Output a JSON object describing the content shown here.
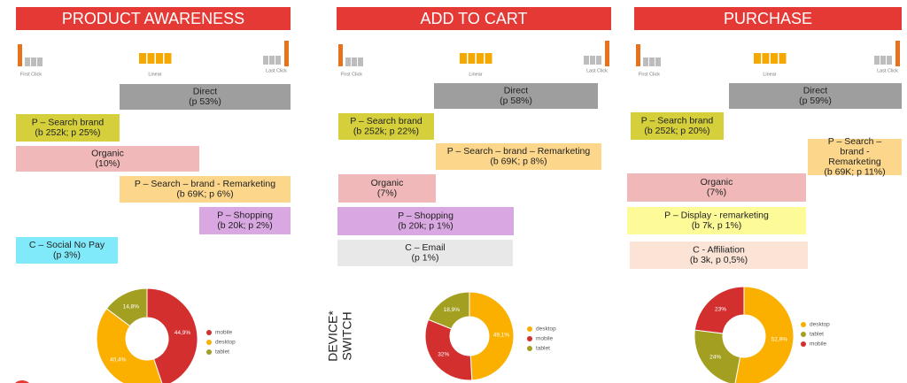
{
  "panels": [
    {
      "title": "PRODUCT AWARENESS",
      "models": [
        "First Click",
        "Linear",
        "Last Click"
      ],
      "channels": [
        {
          "lines": [
            "Direct",
            "(p 53%)"
          ],
          "color": "#9e9e9e"
        },
        {
          "lines": [
            "P – Search brand",
            "(b 252k; p 25%)"
          ],
          "color": "#d4cf3a"
        },
        {
          "lines": [
            "Organic",
            "(10%)"
          ],
          "color": "#f0b8b8"
        },
        {
          "lines": [
            "P – Search – brand - Remarketing",
            "(b 69K; p 6%)"
          ],
          "color": "#fcd68a"
        },
        {
          "lines": [
            "P – Shopping",
            "(b 20k; p 2%)"
          ],
          "color": "#d9a8e2"
        },
        {
          "lines": [
            "C – Social No Pay",
            "(p 3%)"
          ],
          "color": "#80e9fa"
        }
      ]
    },
    {
      "title": "ADD TO CART",
      "models": [
        "First Click",
        "Linear",
        "Last Click"
      ],
      "channels": [
        {
          "lines": [
            "Direct",
            "(p 58%)"
          ],
          "color": "#9e9e9e"
        },
        {
          "lines": [
            "P – Search brand",
            "(b 252k; p 22%)"
          ],
          "color": "#d4cf3a"
        },
        {
          "lines": [
            "P – Search – brand – Remarketing",
            "(b 69K; p 8%)"
          ],
          "color": "#fcd68a"
        },
        {
          "lines": [
            "Organic",
            "(7%)"
          ],
          "color": "#f0b8b8"
        },
        {
          "lines": [
            "P – Shopping",
            "(b 20k; p 1%)"
          ],
          "color": "#d9a8e2"
        },
        {
          "lines": [
            "C – Email",
            "(p 1%)"
          ],
          "color": "#e8e8e8"
        }
      ]
    },
    {
      "title": "PURCHASE",
      "models": [
        "First Click",
        "Linear",
        "Last Click"
      ],
      "channels": [
        {
          "lines": [
            "Direct",
            "(p 59%)"
          ],
          "color": "#9e9e9e"
        },
        {
          "lines": [
            "P – Search brand",
            "(b 252k; p 20%)"
          ],
          "color": "#d4cf3a"
        },
        {
          "lines": [
            "P – Search –",
            "brand -",
            "Remarketing",
            "(b 69K; p 11%)"
          ],
          "color": "#fcd68a"
        },
        {
          "lines": [
            "Organic",
            "(7%)"
          ],
          "color": "#f0b8b8"
        },
        {
          "lines": [
            "P – Display - remarketing",
            "(b 7k, p 1%)"
          ],
          "color": "#fdfb98"
        },
        {
          "lines": [
            "C - Affiliation",
            "(b 3k, p 0,5%)"
          ],
          "color": "#fbe3d6"
        }
      ]
    }
  ],
  "device_label": [
    "DEVICE*",
    "SWITCH"
  ],
  "chart_data": [
    {
      "type": "pie",
      "donut": true,
      "categories": [
        "mobile",
        "desktop",
        "tablet"
      ],
      "values": [
        44.9,
        40.4,
        14.8
      ],
      "value_labels": [
        "44,9%",
        "40,4%",
        "14,8%"
      ],
      "colors": [
        "#d32f2f",
        "#fbb000",
        "#a3a021"
      ]
    },
    {
      "type": "pie",
      "donut": true,
      "categories": [
        "desktop",
        "mobile",
        "tablet"
      ],
      "values": [
        49.1,
        32,
        18.9
      ],
      "value_labels": [
        "49,1%",
        "32%",
        "18,9%"
      ],
      "colors": [
        "#fbb000",
        "#d32f2f",
        "#a3a021"
      ]
    },
    {
      "type": "pie",
      "donut": true,
      "categories": [
        "desktop",
        "tablet",
        "mobile"
      ],
      "values": [
        52.9,
        24,
        23
      ],
      "value_labels": [
        "52,9%",
        "24%",
        "23%"
      ],
      "colors": [
        "#fbb000",
        "#a3a021",
        "#d32f2f"
      ]
    }
  ]
}
